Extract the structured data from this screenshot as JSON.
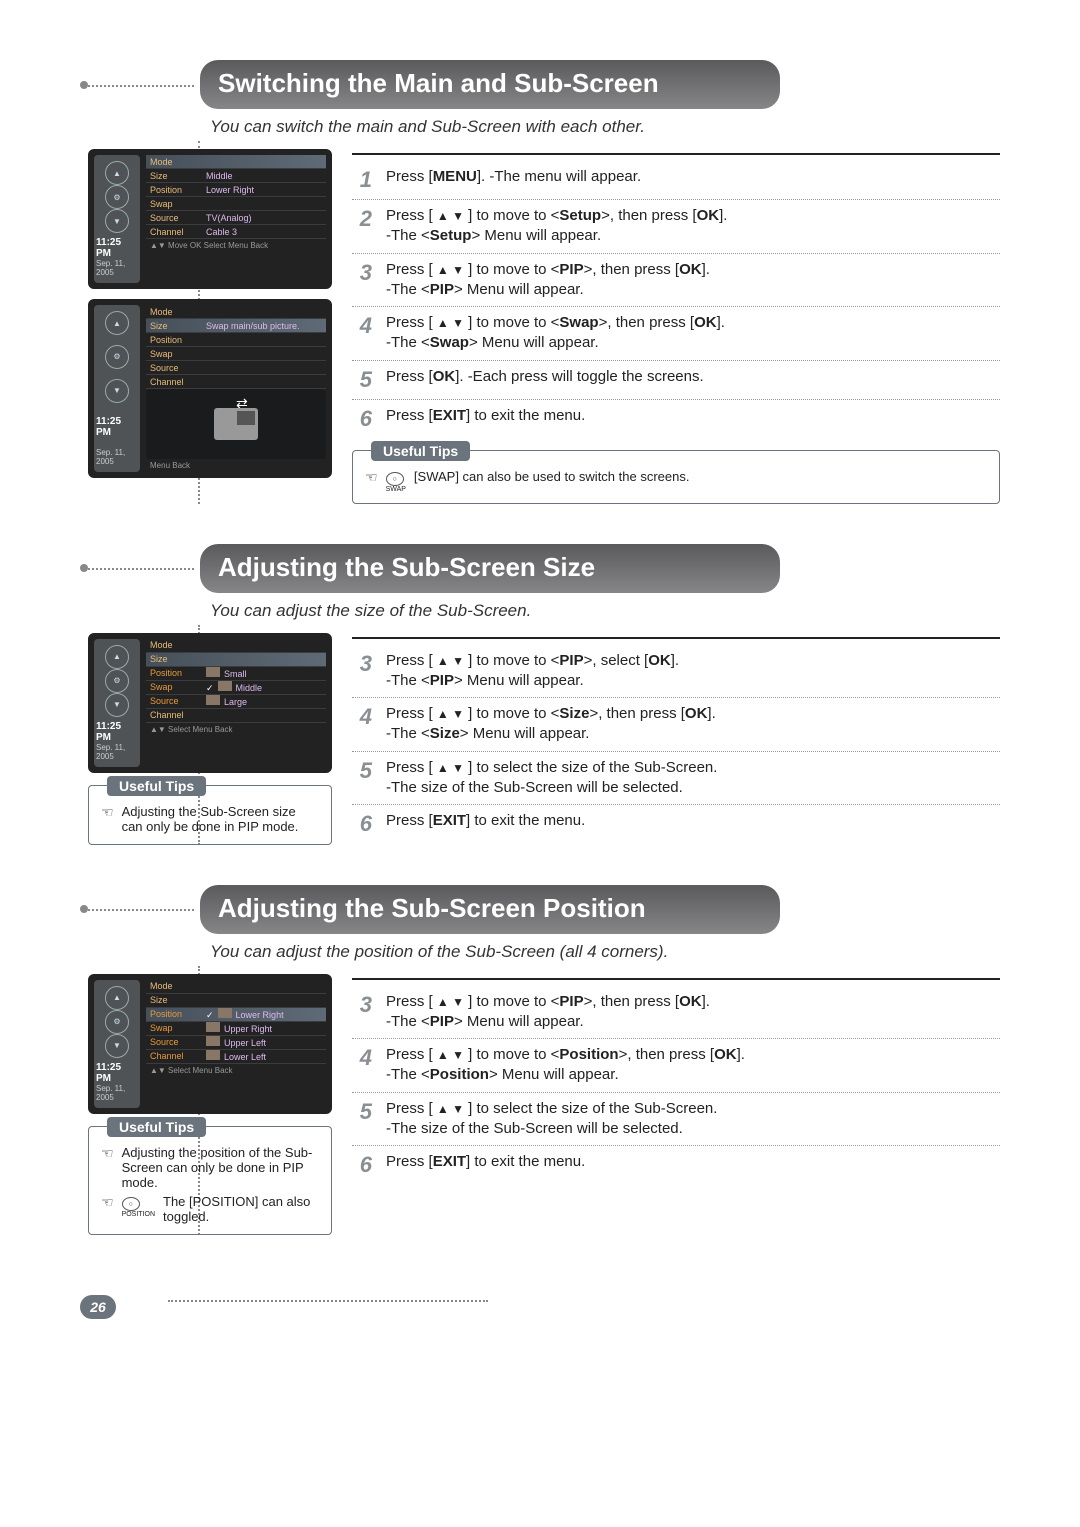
{
  "colors": {
    "header_grad_top": "#5a5a5c",
    "header_grad_bottom": "#868688",
    "tips_bg": "#6b737c",
    "step_num": "#8a8f94",
    "menu_label": "#e8bc7a",
    "text": "#222222"
  },
  "page_number": "26",
  "sections": [
    {
      "title": "Switching the Main and Sub-Screen",
      "subtitle": "You can switch the main and Sub-Screen with each other.",
      "menus": [
        {
          "time": "11:25 PM",
          "date": "Sep. 11, 2005",
          "rows": [
            {
              "label": "Mode",
              "value": "",
              "selected": true
            },
            {
              "label": "Size",
              "value": "Middle"
            },
            {
              "label": "Position",
              "value": "Lower Right"
            },
            {
              "label": "Swap",
              "value": ""
            },
            {
              "label": "Source",
              "value": "TV(Analog)"
            },
            {
              "label": "Channel",
              "value": "Cable 3"
            }
          ],
          "footer": "▲▼ Move   OK Select   Menu Back"
        },
        {
          "time": "11:25 PM",
          "date": "Sep. 11, 2005",
          "rows": [
            {
              "label": "Mode",
              "value": ""
            },
            {
              "label": "Size",
              "value": "Swap main/sub picture.",
              "selected": true
            },
            {
              "label": "Position",
              "value": ""
            },
            {
              "label": "Swap",
              "value": ""
            },
            {
              "label": "Source",
              "value": ""
            },
            {
              "label": "Channel",
              "value": ""
            }
          ],
          "footer": "Menu Back",
          "has_preview": true
        }
      ],
      "steps": [
        {
          "n": "1",
          "html": "Press [<b>MENU</b>]. -The menu will appear."
        },
        {
          "n": "2",
          "html": "Press [ <span class='arrows'>▲ ▼</span> ] to move to &lt;<b>Setup</b>&gt;, then press [<b>OK</b>].<br>-The &lt;<b>Setup</b>&gt; Menu will appear."
        },
        {
          "n": "3",
          "html": "Press [ <span class='arrows'>▲ ▼</span> ] to move to &lt;<b>PIP</b>&gt;, then press [<b>OK</b>].<br>-The &lt;<b>PIP</b>&gt; Menu will appear."
        },
        {
          "n": "4",
          "html": "Press [ <span class='arrows'>▲ ▼</span> ] to move to &lt;<b>Swap</b>&gt;, then press [<b>OK</b>].<br>-The &lt;<b>Swap</b>&gt; Menu will appear."
        },
        {
          "n": "5",
          "html": "Press [<b>OK</b>]. -Each press will toggle the screens."
        },
        {
          "n": "6",
          "html": "Press [<b>EXIT</b>] to exit the menu."
        }
      ],
      "tips_in_right": true,
      "tips": {
        "title": "Useful Tips",
        "lines": [
          {
            "icon": "swap-button",
            "icon_label": "SWAP",
            "text": "[SWAP] can also be used to switch the screens."
          }
        ]
      }
    },
    {
      "title": "Adjusting the Sub-Screen Size",
      "subtitle": "You can adjust the size of the Sub-Screen.",
      "menus": [
        {
          "time": "11:25 PM",
          "date": "Sep. 11, 2005",
          "rows": [
            {
              "label": "Mode",
              "value": ""
            },
            {
              "label": "Size",
              "value": "",
              "selected": true
            },
            {
              "label": "Position",
              "value": "Small",
              "option": true
            },
            {
              "label": "Swap",
              "value": "Middle",
              "option": true,
              "checked": true
            },
            {
              "label": "Source",
              "value": "Large",
              "option": true
            },
            {
              "label": "Channel",
              "value": ""
            }
          ],
          "footer": "▲▼ Select   Menu Back"
        }
      ],
      "tips_in_right": false,
      "tips": {
        "title": "Useful Tips",
        "lines": [
          {
            "text": "Adjusting the Sub-Screen size can only be done in PIP mode."
          }
        ]
      },
      "steps": [
        {
          "n": "3",
          "html": "Press [ <span class='arrows'>▲ ▼</span> ] to move to &lt;<b>PIP</b>&gt;, select [<b>OK</b>].<br>-The &lt;<b>PIP</b>&gt; Menu will appear."
        },
        {
          "n": "4",
          "html": "Press [ <span class='arrows'>▲ ▼</span> ] to move to &lt;<b>Size</b>&gt;, then press [<b>OK</b>].<br>-The &lt;<b>Size</b>&gt; Menu will appear."
        },
        {
          "n": "5",
          "html": "Press [ <span class='arrows'>▲ ▼</span> ] to select the size of the Sub-Screen.<br>-The size of the Sub-Screen will be selected."
        },
        {
          "n": "6",
          "html": "Press [<b>EXIT</b>] to exit the menu."
        }
      ]
    },
    {
      "title": "Adjusting the Sub-Screen Position",
      "subtitle": "You can adjust the position of the Sub-Screen (all 4 corners).",
      "menus": [
        {
          "time": "11:25 PM",
          "date": "Sep. 11, 2005",
          "rows": [
            {
              "label": "Mode",
              "value": ""
            },
            {
              "label": "Size",
              "value": ""
            },
            {
              "label": "Position",
              "value": "Lower Right",
              "selected": true,
              "option": true,
              "checked": true
            },
            {
              "label": "Swap",
              "value": "Upper Right",
              "option": true
            },
            {
              "label": "Source",
              "value": "Upper Left",
              "option": true
            },
            {
              "label": "Channel",
              "value": "Lower Left",
              "option": true
            }
          ],
          "footer": "▲▼ Select   Menu Back"
        }
      ],
      "tips_in_right": false,
      "tips": {
        "title": "Useful Tips",
        "lines": [
          {
            "text": "Adjusting the position of the Sub-Screen can only be done in PIP mode."
          },
          {
            "icon": "position-button",
            "icon_label": "POSITION",
            "text": "The [POSITION] can also toggled."
          }
        ]
      },
      "steps": [
        {
          "n": "3",
          "html": "Press [ <span class='arrows'>▲ ▼</span> ] to move to &lt;<b>PIP</b>&gt;, then press [<b>OK</b>].<br>-The &lt;<b>PIP</b>&gt; Menu will appear."
        },
        {
          "n": "4",
          "html": "Press [ <span class='arrows'>▲ ▼</span> ] to move to &lt;<b>Position</b>&gt;, then press [<b>OK</b>].<br>-The &lt;<b>Position</b>&gt; Menu will appear."
        },
        {
          "n": "5",
          "html": "Press [ <span class='arrows'>▲ ▼</span> ] to select the size of the Sub-Screen.<br>-The size of the Sub-Screen will be selected."
        },
        {
          "n": "6",
          "html": "Press [<b>EXIT</b>] to exit the menu."
        }
      ]
    }
  ]
}
